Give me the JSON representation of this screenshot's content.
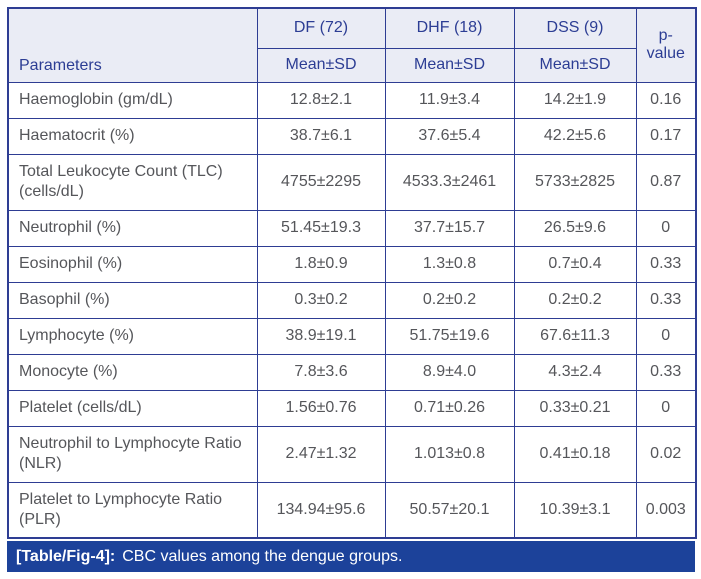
{
  "table": {
    "header": {
      "parameters_label": "Parameters",
      "group_df": "DF (72)",
      "group_dhf": "DHF (18)",
      "group_dss": "DSS (9)",
      "subheader": "Mean±SD",
      "p_line1": "p-",
      "p_line2": "value"
    },
    "rows": [
      {
        "parameter": "Haemoglobin (gm/dL)",
        "df": "12.8±2.1",
        "dhf": "11.9±3.4",
        "dss": "14.2±1.9",
        "p": "0.16"
      },
      {
        "parameter": "Haematocrit (%)",
        "df": "38.7±6.1",
        "dhf": "37.6±5.4",
        "dss": "42.2±5.6",
        "p": "0.17"
      },
      {
        "parameter": "Total Leukocyte Count (TLC) (cells/dL)",
        "df": "4755±2295",
        "dhf": "4533.3±2461",
        "dss": "5733±2825",
        "p": "0.87"
      },
      {
        "parameter": "Neutrophil (%)",
        "df": "51.45±19.3",
        "dhf": "37.7±15.7",
        "dss": "26.5±9.6",
        "p": "0"
      },
      {
        "parameter": "Eosinophil (%)",
        "df": "1.8±0.9",
        "dhf": "1.3±0.8",
        "dss": "0.7±0.4",
        "p": "0.33"
      },
      {
        "parameter": "Basophil (%)",
        "df": "0.3±0.2",
        "dhf": "0.2±0.2",
        "dss": "0.2±0.2",
        "p": "0.33"
      },
      {
        "parameter": "Lymphocyte (%)",
        "df": "38.9±19.1",
        "dhf": "51.75±19.6",
        "dss": "67.6±11.3",
        "p": "0"
      },
      {
        "parameter": "Monocyte (%)",
        "df": "7.8±3.6",
        "dhf": "8.9±4.0",
        "dss": "4.3±2.4",
        "p": "0.33"
      },
      {
        "parameter": "Platelet (cells/dL)",
        "df": "1.56±0.76",
        "dhf": "0.71±0.26",
        "dss": "0.33±0.21",
        "p": "0"
      },
      {
        "parameter": "Neutrophil to Lymphocyte Ratio (NLR)",
        "df": "2.47±1.32",
        "dhf": "1.013±0.8",
        "dss": "0.41±0.18",
        "p": "0.02"
      },
      {
        "parameter": "Platelet to Lymphocyte Ratio (PLR)",
        "df": "134.94±95.6",
        "dhf": "50.57±20.1",
        "dss": "10.39±3.1",
        "p": "0.003"
      }
    ],
    "colors": {
      "header_bg": "#eaecf5",
      "header_text": "#2c3d94",
      "border": "#2e3d93",
      "body_text": "#55565a",
      "caption_bg": "#1c429a",
      "caption_text": "#ffffff"
    }
  },
  "caption": {
    "label": "[Table/Fig-4]:",
    "text": "CBC values among the dengue groups."
  }
}
